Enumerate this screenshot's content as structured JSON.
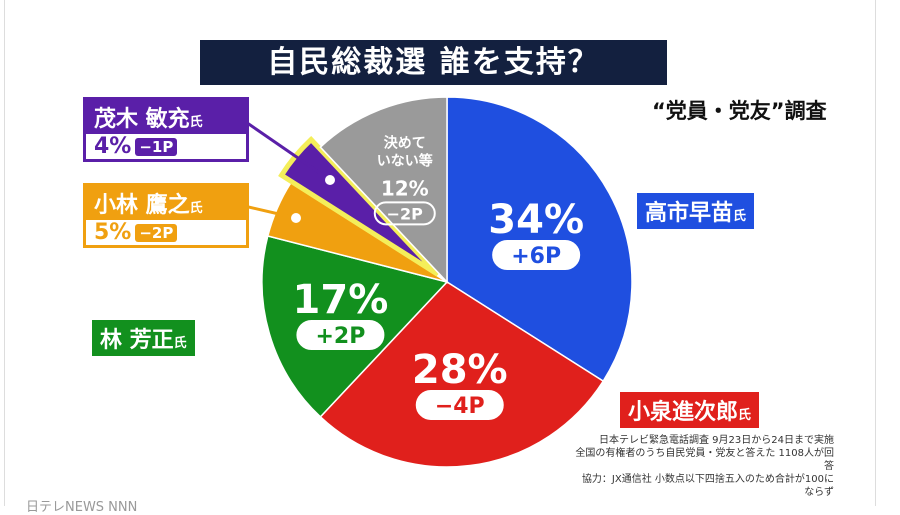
{
  "title": "自民総裁選  誰を支持？",
  "survey": "“党員・党友”調査",
  "note": [
    "日本テレビ緊急電話調査 9月23日から24日まで実施",
    "全国の有権者のうち自民党員・党友と答えた 1108人が回答",
    "協力：JX通信社 小数点以下四捨五入のため合計が100にならず"
  ],
  "footer": "日テレNEWS NNN",
  "chart_data": {
    "type": "pie",
    "title": "自民総裁選  誰を支持？",
    "start": "12 o'clock, clockwise",
    "slices": [
      {
        "name": "高市早苗",
        "suffix": "氏",
        "value": 34,
        "label": "34%",
        "change": "+6P",
        "color": "#1f4fe0"
      },
      {
        "name": "小泉進次郎",
        "suffix": "氏",
        "value": 28,
        "label": "28%",
        "change": "−4P",
        "color": "#e0201c"
      },
      {
        "name": "林 芳正",
        "suffix": "氏",
        "value": 17,
        "label": "17%",
        "change": "+2P",
        "color": "#12901e"
      },
      {
        "name": "小林 鷹之",
        "suffix": "氏",
        "value": 5,
        "label": "5%",
        "change": "−2P",
        "color": "#f0a010"
      },
      {
        "name": "茂木 敏充",
        "suffix": "氏",
        "value": 4,
        "label": "4%",
        "change": "−1P",
        "color": "#5a1fa8",
        "highlight": "#f4ee5a"
      },
      {
        "name": "決めていない等",
        "value": 12,
        "label": "12%",
        "change": "−2P",
        "color": "#9a9a9a"
      }
    ]
  }
}
